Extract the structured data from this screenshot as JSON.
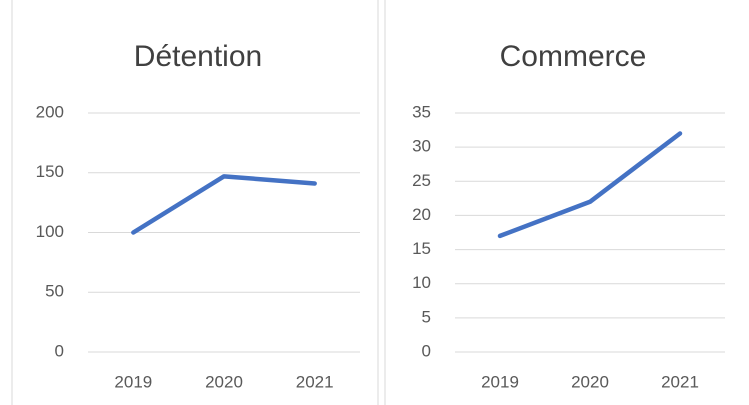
{
  "chart_data": [
    {
      "type": "line",
      "title": "Détention",
      "categories": [
        "2019",
        "2020",
        "2021"
      ],
      "values": [
        100,
        147,
        141
      ],
      "color": "#4472c4",
      "ylim": [
        0,
        200
      ],
      "yticks": [
        0,
        50,
        100,
        150,
        200
      ],
      "grid": true
    },
    {
      "type": "line",
      "title": "Commerce",
      "categories": [
        "2019",
        "2020",
        "2021"
      ],
      "values": [
        17,
        22,
        32
      ],
      "color": "#4472c4",
      "ylim": [
        0,
        35
      ],
      "yticks": [
        0,
        5,
        10,
        15,
        20,
        25,
        30,
        35
      ],
      "grid": true
    }
  ]
}
